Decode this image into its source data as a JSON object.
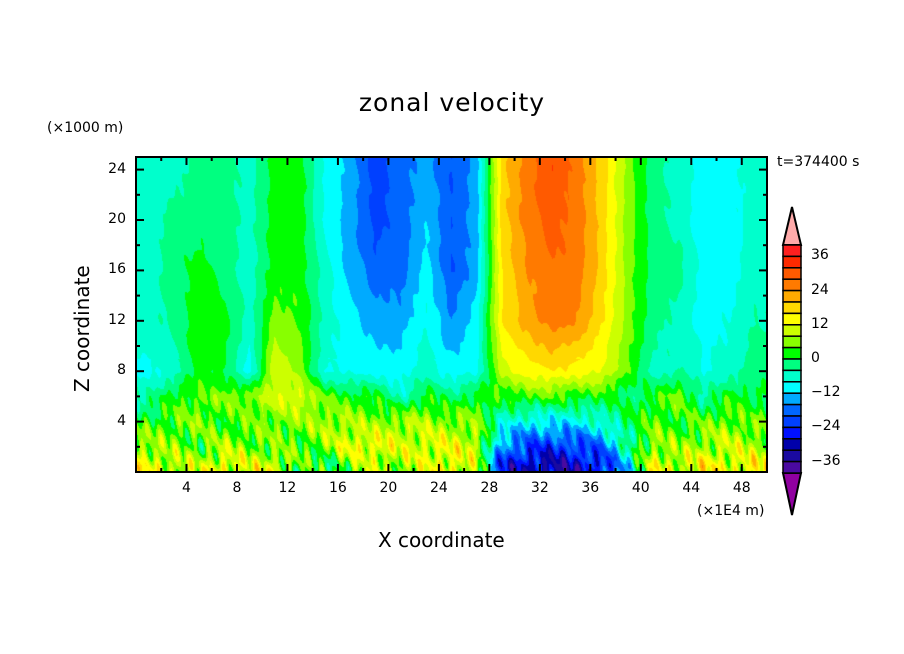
{
  "title": "zonal velocity",
  "z_unit": "(×1000 m)",
  "x_unit": "(×1E4 m)",
  "time_label": "t=374400 s",
  "chart_data": {
    "type": "heatmap",
    "title": "zonal velocity",
    "xlabel": "X coordinate",
    "ylabel": "Z coordinate",
    "xlim": [
      0,
      50
    ],
    "ylim": [
      0,
      25
    ],
    "x_ticks": [
      "4",
      "8",
      "12",
      "16",
      "20",
      "24",
      "28",
      "32",
      "36",
      "40",
      "44",
      "48"
    ],
    "y_ticks": [
      "4",
      "8",
      "12",
      "16",
      "20",
      "24"
    ],
    "x": [
      1,
      3,
      5,
      7,
      9,
      11,
      13,
      15,
      17,
      19,
      21,
      23,
      25,
      27,
      29,
      31,
      33,
      35,
      37,
      39,
      41,
      43,
      45,
      47,
      49
    ],
    "z": [
      24,
      20,
      16,
      12,
      8,
      6,
      4,
      2,
      0.5
    ],
    "values_by_x": [
      [
        -6,
        -6,
        -6,
        -6,
        -9,
        -4,
        2,
        8,
        12
      ],
      [
        -6,
        -2,
        -2,
        -3,
        -6,
        2,
        4,
        6,
        10
      ],
      [
        -2,
        -2,
        2,
        3,
        2,
        4,
        6,
        3,
        8
      ],
      [
        -2,
        -2,
        -2,
        2,
        0,
        6,
        2,
        8,
        14
      ],
      [
        -6,
        -6,
        -6,
        -6,
        -10,
        6,
        4,
        6,
        10
      ],
      [
        2,
        2,
        2,
        6,
        12,
        10,
        6,
        4,
        12
      ],
      [
        2,
        2,
        2,
        4,
        6,
        12,
        6,
        4,
        2
      ],
      [
        -9,
        -9,
        -6,
        -6,
        -8,
        4,
        8,
        6,
        0
      ],
      [
        -14,
        -14,
        -14,
        -10,
        -9,
        2,
        8,
        12,
        6
      ],
      [
        -22,
        -22,
        -18,
        -14,
        -10,
        2,
        6,
        14,
        8
      ],
      [
        -18,
        -18,
        -18,
        -14,
        -10,
        -6,
        8,
        10,
        8
      ],
      [
        -14,
        -12,
        -10,
        -8,
        -6,
        2,
        8,
        12,
        10
      ],
      [
        -20,
        -20,
        -20,
        -16,
        -10,
        -2,
        6,
        12,
        14
      ],
      [
        -14,
        -14,
        -14,
        -10,
        -9,
        2,
        6,
        10,
        8
      ],
      [
        18,
        18,
        16,
        16,
        10,
        2,
        -6,
        -16,
        -26
      ],
      [
        26,
        26,
        24,
        22,
        14,
        4,
        -10,
        -22,
        -30
      ],
      [
        32,
        30,
        28,
        26,
        16,
        4,
        -10,
        -24,
        -32
      ],
      [
        26,
        26,
        26,
        24,
        14,
        2,
        -10,
        -22,
        -30
      ],
      [
        18,
        18,
        18,
        16,
        12,
        2,
        -6,
        -18,
        -26
      ],
      [
        6,
        6,
        6,
        6,
        4,
        -2,
        0,
        -4,
        -10
      ],
      [
        -2,
        -2,
        -2,
        -2,
        -6,
        2,
        4,
        8,
        12
      ],
      [
        -6,
        -6,
        -2,
        -6,
        -4,
        6,
        2,
        6,
        10
      ],
      [
        -10,
        -10,
        -10,
        -10,
        -8,
        -4,
        4,
        8,
        14
      ],
      [
        -10,
        -10,
        -10,
        -8,
        -6,
        2,
        6,
        10,
        12
      ],
      [
        -6,
        -6,
        -6,
        -4,
        -2,
        0,
        4,
        8,
        14
      ]
    ],
    "levels": [
      -40,
      -36,
      -32,
      -28,
      -24,
      -20,
      -16,
      -12,
      -8,
      -4,
      0,
      4,
      8,
      12,
      16,
      20,
      24,
      28,
      32,
      36,
      40
    ],
    "colors": [
      "#4a0aa0",
      "#1a0aa0",
      "#0000aa",
      "#0010ff",
      "#0040ff",
      "#0066ff",
      "#00aaff",
      "#00ffff",
      "#00ffcc",
      "#00ff80",
      "#00ff00",
      "#88ff00",
      "#ccff00",
      "#ffff00",
      "#ffd800",
      "#ffaa00",
      "#ff7a00",
      "#ff5a00",
      "#ff2a00",
      "#ff2020"
    ],
    "over_color": "#ffaaaa",
    "under_color": "#9000a0",
    "colorbar_labels": [
      "36",
      "24",
      "12",
      "0",
      "−12",
      "−24",
      "−36"
    ],
    "colorbar_label_values": [
      36,
      24,
      12,
      0,
      -12,
      -24,
      -36
    ]
  }
}
